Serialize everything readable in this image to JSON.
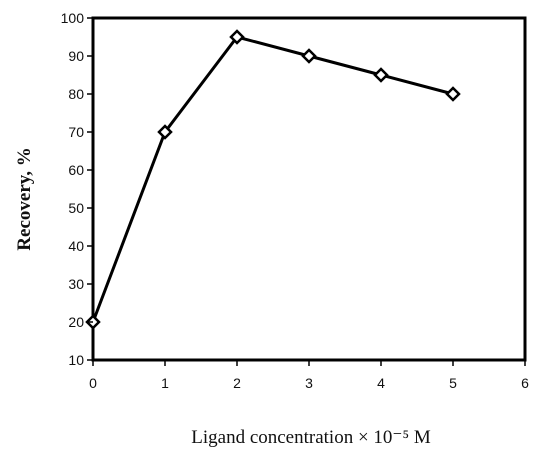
{
  "chart_data": {
    "type": "line",
    "title": "",
    "xlabel": "Ligand concentration × 10⁻⁵ M",
    "ylabel": "Recovery, %",
    "xlim": [
      0,
      6
    ],
    "ylim": [
      10,
      100
    ],
    "x_ticks": [
      "0",
      "1",
      "2",
      "3",
      "4",
      "5",
      "6"
    ],
    "y_ticks": [
      "10",
      "20",
      "30",
      "40",
      "50",
      "60",
      "70",
      "80",
      "90",
      "100"
    ],
    "grid": false,
    "legend": false,
    "marker": "diamond",
    "colors": {
      "line": "#000000",
      "marker_fill": "#ffffff",
      "axis": "#000000"
    },
    "series": [
      {
        "x": [
          0,
          1,
          2,
          3,
          4,
          5
        ],
        "y": [
          20,
          70,
          95,
          90,
          85,
          80
        ]
      }
    ]
  }
}
